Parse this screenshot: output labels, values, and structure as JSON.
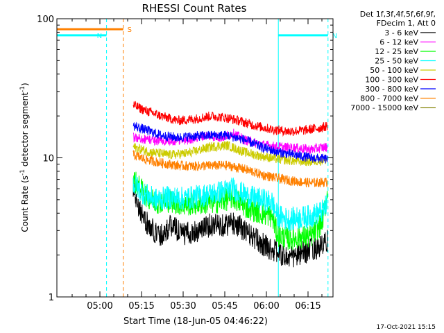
{
  "chart_data": {
    "type": "line",
    "title": "RHESSI Count Rates",
    "xlabel": "Start Time (18-Jun-05 04:46:22)",
    "ylabel_main": "Count Rate (s",
    "ylabel_sup": "-1",
    "ylabel_mid": " detector segment",
    "ylabel_sup2": "-1",
    "ylabel_end": ")",
    "y_scale": "log",
    "ylim": [
      1,
      100
    ],
    "xlim_minutes": [
      -15.5,
      84
    ],
    "x_ticks": [
      {
        "t": 0,
        "label": "05:00"
      },
      {
        "t": 15,
        "label": "05:15"
      },
      {
        "t": 30,
        "label": "05:30"
      },
      {
        "t": 45,
        "label": "05:45"
      },
      {
        "t": 60,
        "label": "06:00"
      },
      {
        "t": 75,
        "label": "06:15"
      }
    ],
    "y_ticks": [
      {
        "v": 1,
        "label": "1"
      },
      {
        "v": 10,
        "label": "10"
      },
      {
        "v": 100,
        "label": "100"
      }
    ],
    "legend_header": [
      "Det 1f,3f,4f,5f,6f,9f,",
      "FDecim 1, Att 0"
    ],
    "series": [
      {
        "name": "3 - 6 keV",
        "color": "#000000",
        "points": [
          [
            12,
            6
          ],
          [
            15,
            4
          ],
          [
            18,
            3.1
          ],
          [
            22,
            2.8
          ],
          [
            26,
            3.3
          ],
          [
            30,
            2.8
          ],
          [
            35,
            3.0
          ],
          [
            40,
            3.3
          ],
          [
            45,
            3.3
          ],
          [
            49,
            3.4
          ],
          [
            52,
            3.0
          ],
          [
            56,
            2.6
          ],
          [
            60,
            2.3
          ],
          [
            64,
            2.1
          ],
          [
            68,
            1.9
          ],
          [
            72,
            2.0
          ],
          [
            76,
            2.2
          ],
          [
            80,
            2.3
          ],
          [
            82,
            2.5
          ]
        ]
      },
      {
        "name": "6 - 12 keV",
        "color": "#ff00ff",
        "points": [
          [
            12,
            14
          ],
          [
            18,
            13.5
          ],
          [
            25,
            13
          ],
          [
            32,
            13.5
          ],
          [
            38,
            14.5
          ],
          [
            44,
            14
          ],
          [
            48,
            15
          ],
          [
            52,
            13.5
          ],
          [
            58,
            12.5
          ],
          [
            64,
            12
          ],
          [
            70,
            11.8
          ],
          [
            76,
            11.5
          ],
          [
            82,
            12
          ]
        ]
      },
      {
        "name": "12 - 25 keV",
        "color": "#00ff00",
        "points": [
          [
            12,
            7
          ],
          [
            16,
            5.5
          ],
          [
            20,
            4.8
          ],
          [
            25,
            4.9
          ],
          [
            30,
            4.6
          ],
          [
            36,
            4.7
          ],
          [
            42,
            4.8
          ],
          [
            48,
            5.2
          ],
          [
            53,
            4.4
          ],
          [
            58,
            4.0
          ],
          [
            62,
            3.8
          ],
          [
            64,
            2.8
          ],
          [
            68,
            2.6
          ],
          [
            72,
            2.7
          ],
          [
            76,
            2.7
          ],
          [
            80,
            3.4
          ],
          [
            82,
            5.5
          ]
        ]
      },
      {
        "name": "25 - 50 keV",
        "color": "#00ffff",
        "points": [
          [
            12,
            6.5
          ],
          [
            16,
            5.5
          ],
          [
            20,
            5.0
          ],
          [
            25,
            5.2
          ],
          [
            30,
            5.1
          ],
          [
            36,
            5.3
          ],
          [
            42,
            5.6
          ],
          [
            48,
            6.0
          ],
          [
            53,
            5.3
          ],
          [
            58,
            5.0
          ],
          [
            62,
            4.8
          ],
          [
            64,
            3.8
          ],
          [
            68,
            3.6
          ],
          [
            72,
            3.7
          ],
          [
            76,
            3.8
          ],
          [
            80,
            4.1
          ],
          [
            82,
            4.6
          ]
        ]
      },
      {
        "name": "50 - 100 keV",
        "color": "#cccc00",
        "points": [
          [
            12,
            12
          ],
          [
            18,
            11
          ],
          [
            25,
            10.5
          ],
          [
            32,
            10.8
          ],
          [
            40,
            12
          ],
          [
            46,
            12.3
          ],
          [
            52,
            11
          ],
          [
            58,
            10.3
          ],
          [
            64,
            9.8
          ],
          [
            70,
            9.5
          ],
          [
            76,
            9.4
          ],
          [
            82,
            9.7
          ]
        ]
      },
      {
        "name": "100 - 300 keV",
        "color": "#ff0000",
        "points": [
          [
            12,
            24
          ],
          [
            16,
            22
          ],
          [
            22,
            20
          ],
          [
            28,
            18.5
          ],
          [
            34,
            19
          ],
          [
            40,
            20
          ],
          [
            45,
            19.5
          ],
          [
            50,
            18.5
          ],
          [
            56,
            17
          ],
          [
            62,
            16
          ],
          [
            68,
            15.5
          ],
          [
            74,
            15.8
          ],
          [
            80,
            16.5
          ],
          [
            82,
            17
          ]
        ]
      },
      {
        "name": "300 - 800 keV",
        "color": "#0000ff",
        "points": [
          [
            12,
            17
          ],
          [
            16,
            16
          ],
          [
            22,
            14.5
          ],
          [
            28,
            14
          ],
          [
            34,
            14.3
          ],
          [
            40,
            14.5
          ],
          [
            46,
            14.5
          ],
          [
            52,
            13.5
          ],
          [
            58,
            12
          ],
          [
            64,
            11
          ],
          [
            70,
            10.5
          ],
          [
            76,
            10
          ],
          [
            82,
            9.8
          ]
        ]
      },
      {
        "name": "800 - 7000 keV",
        "color": "#ff8000",
        "points": [
          [
            12,
            10.5
          ],
          [
            16,
            9.8
          ],
          [
            22,
            9.2
          ],
          [
            28,
            8.8
          ],
          [
            34,
            8.7
          ],
          [
            40,
            8.8
          ],
          [
            46,
            8.8
          ],
          [
            52,
            8.3
          ],
          [
            58,
            7.6
          ],
          [
            64,
            7.1
          ],
          [
            70,
            6.8
          ],
          [
            76,
            6.6
          ],
          [
            82,
            6.7
          ]
        ]
      },
      {
        "name": "7000 - 15000 keV",
        "color": "#808000",
        "points": []
      }
    ],
    "attenuator_bars": [
      {
        "label": "N",
        "color": "#00ffff",
        "x0": -15.5,
        "x1": 2.4,
        "y": 76
      },
      {
        "label": "N",
        "color": "#00ffff",
        "x0": 64.3,
        "x1": 82.2,
        "y": 76
      },
      {
        "label": "S",
        "color": "#ff8000",
        "x0": -15.5,
        "x1": 8.4,
        "y": 84
      }
    ],
    "vlines": [
      {
        "t": -15.5,
        "color": "#00ffff",
        "style": "solid"
      },
      {
        "t": 2.4,
        "color": "#00ffff",
        "style": "dashed"
      },
      {
        "t": 8.4,
        "color": "#ff8000",
        "style": "dashed"
      },
      {
        "t": 64.3,
        "color": "#00ffff",
        "style": "solid"
      },
      {
        "t": 82.2,
        "color": "#00ffff",
        "style": "dashed"
      }
    ],
    "timestamp": "17-Oct-2021 15:15",
    "grid": false,
    "legend_position": "top-right outside plot"
  }
}
